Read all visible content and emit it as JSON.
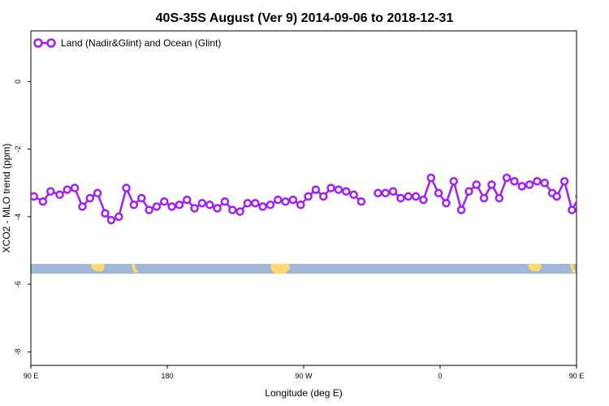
{
  "chart_data": {
    "type": "line",
    "title": "40S-35S August (Ver 9)   2014-09-06 to 2018-12-31",
    "xlabel": "Longitude (deg E)",
    "ylabel": "XCO2 - MLO trend (ppm)",
    "xlim": [
      90,
      450
    ],
    "ylim": [
      -8.4,
      1.5
    ],
    "grid": false,
    "legend_position": "top-left",
    "x_ticks": [
      {
        "value": 90,
        "label": "90 E"
      },
      {
        "value": 180,
        "label": "180"
      },
      {
        "value": 270,
        "label": "90 W"
      },
      {
        "value": 360,
        "label": "0"
      },
      {
        "value": 450,
        "label": "90 E"
      },
      {
        "value": 540,
        "label": "180"
      }
    ],
    "y_ticks": [
      {
        "value": 0,
        "label": "0"
      },
      {
        "value": -2,
        "label": "-2"
      },
      {
        "value": -4,
        "label": "-4"
      },
      {
        "value": -6,
        "label": "-6"
      },
      {
        "value": -8,
        "label": "-8"
      }
    ],
    "series": [
      {
        "name": "Land (Nadir&Glint) and Ocean (Glint)",
        "color": "#a020f0",
        "points": [
          [
            92,
            -3.4
          ],
          [
            98,
            -3.55
          ],
          [
            103,
            -3.25
          ],
          [
            109,
            -3.35
          ],
          [
            114,
            -3.2
          ],
          [
            119,
            -3.15
          ],
          [
            124,
            -3.7
          ],
          [
            129,
            -3.45
          ],
          [
            134,
            -3.3
          ],
          [
            139,
            -3.9
          ],
          [
            143,
            -4.1
          ],
          [
            148,
            -4.0
          ],
          [
            153,
            -3.15
          ],
          [
            158,
            -3.65
          ],
          [
            163,
            -3.45
          ],
          [
            168,
            -3.8
          ],
          [
            173,
            -3.7
          ],
          [
            178,
            -3.55
          ],
          [
            183,
            -3.7
          ],
          [
            188,
            -3.65
          ],
          [
            193,
            -3.5
          ],
          [
            198,
            -3.75
          ],
          [
            203,
            -3.6
          ],
          [
            208,
            -3.65
          ],
          [
            213,
            -3.75
          ],
          [
            218,
            -3.55
          ],
          [
            223,
            -3.8
          ],
          [
            228,
            -3.85
          ],
          [
            233,
            -3.6
          ],
          [
            238,
            -3.6
          ],
          [
            243,
            -3.7
          ],
          [
            248,
            -3.65
          ],
          [
            253,
            -3.5
          ],
          [
            258,
            -3.55
          ],
          [
            263,
            -3.5
          ],
          [
            268,
            -3.65
          ],
          [
            273,
            -3.4
          ],
          [
            278,
            -3.2
          ],
          [
            283,
            -3.4
          ],
          [
            288,
            -3.15
          ],
          [
            293,
            -3.2
          ],
          [
            298,
            -3.25
          ],
          [
            303,
            -3.35
          ],
          [
            308,
            -3.55
          ],
          null,
          [
            319,
            -3.3
          ],
          [
            324,
            -3.3
          ],
          [
            329,
            -3.25
          ],
          [
            334,
            -3.45
          ],
          [
            339,
            -3.4
          ],
          [
            344,
            -3.4
          ],
          [
            349,
            -3.5
          ],
          [
            354,
            -2.85
          ],
          [
            359,
            -3.3
          ],
          [
            364,
            -3.6
          ],
          [
            369,
            -2.95
          ],
          [
            374,
            -3.8
          ],
          [
            379,
            -3.25
          ],
          [
            384,
            -3.05
          ],
          [
            389,
            -3.45
          ],
          [
            394,
            -3.05
          ],
          [
            399,
            -3.45
          ],
          [
            404,
            -2.85
          ],
          [
            409,
            -2.95
          ],
          [
            414,
            -3.1
          ],
          [
            419,
            -3.05
          ],
          [
            424,
            -2.95
          ],
          [
            429,
            -3.0
          ],
          [
            434,
            -3.3
          ],
          [
            437,
            -3.4
          ],
          [
            442,
            -2.95
          ],
          [
            447,
            -3.8
          ],
          [
            452,
            -3.4
          ],
          [
            457,
            -3.5
          ],
          [
            462,
            -3.25
          ],
          [
            467,
            -3.4
          ],
          [
            472,
            -3.2
          ],
          [
            477,
            -3.15
          ],
          [
            482,
            -3.7
          ],
          [
            487,
            -3.4
          ],
          [
            492,
            -3.25
          ],
          [
            497,
            -3.9
          ],
          [
            502,
            -4.1
          ],
          [
            507,
            -3.95
          ],
          [
            512,
            -3.15
          ],
          [
            517,
            -3.6
          ],
          [
            522,
            -3.45
          ],
          [
            527,
            -3.8
          ],
          [
            532,
            -3.65
          ],
          [
            537,
            -3.55
          ]
        ]
      }
    ]
  },
  "map_strip": {
    "ocean_color": "#a0b8d8",
    "land_color": "#ffd870"
  }
}
